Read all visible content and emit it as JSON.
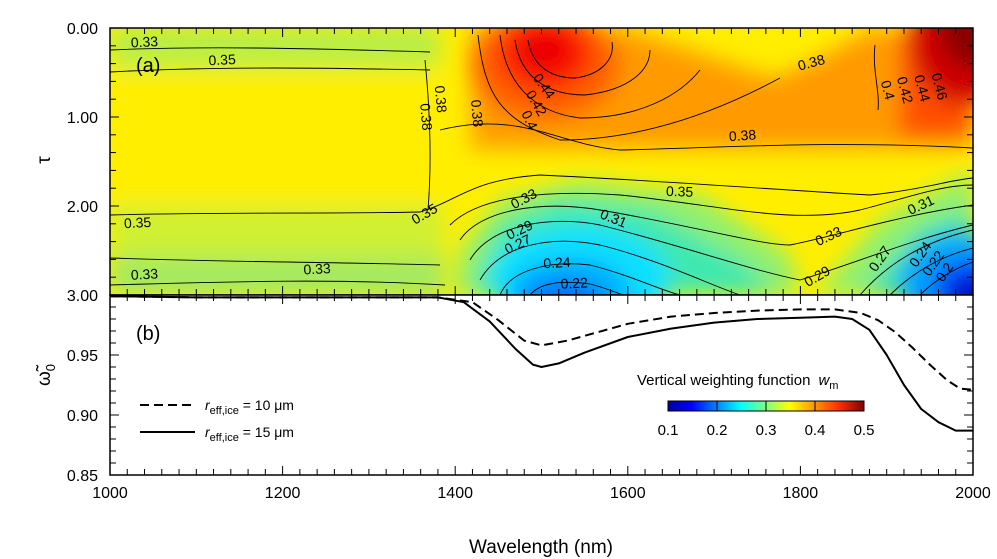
{
  "chart_data": [
    {
      "panel": "(a)",
      "type": "heatmap",
      "xlabel": "Wavelength (nm)",
      "ylabel": "τ",
      "xlim": [
        1000,
        2000
      ],
      "ylim": [
        3.0,
        0.0
      ],
      "x_ticks": [
        1000,
        1200,
        1400,
        1600,
        1800,
        2000
      ],
      "y_ticks": [
        "0.00",
        "1.00",
        "2.00",
        "3.00"
      ],
      "colormap": "jet",
      "color_range": [
        0.1,
        0.5
      ],
      "contour_levels": [
        "0.22",
        "0.24",
        "0.27",
        "0.29",
        "0.31",
        "0.33",
        "0.35",
        "0.38",
        "0.4",
        "0.42",
        "0.44",
        "0.46"
      ],
      "colorbar": {
        "title": "Vertical weighting function",
        "symbol": "w",
        "subscript": "m",
        "ticks": [
          "0.1",
          "0.2",
          "0.3",
          "0.4",
          "0.5"
        ]
      },
      "contour_labels": [
        {
          "text": "0.33",
          "x": 1040,
          "y": 0.17,
          "rot": -3
        },
        {
          "text": "0.35",
          "x": 1130,
          "y": 0.37,
          "rot": -3
        },
        {
          "text": "0.38",
          "x": 1382,
          "y": 0.8,
          "rot": 85
        },
        {
          "text": "0.38",
          "x": 1365,
          "y": 1.0,
          "rot": 85
        },
        {
          "text": "0.38",
          "x": 1424,
          "y": 0.96,
          "rot": 85
        },
        {
          "text": "0.44",
          "x": 1502,
          "y": 0.66,
          "rot": 55
        },
        {
          "text": "0.42",
          "x": 1493,
          "y": 0.85,
          "rot": 60
        },
        {
          "text": "0.4",
          "x": 1485,
          "y": 1.04,
          "rot": 65
        },
        {
          "text": "0.38",
          "x": 1813,
          "y": 0.4,
          "rot": -15
        },
        {
          "text": "0.4",
          "x": 1900,
          "y": 0.7,
          "rot": 75
        },
        {
          "text": "0.42",
          "x": 1920,
          "y": 0.7,
          "rot": 75
        },
        {
          "text": "0.44",
          "x": 1940,
          "y": 0.68,
          "rot": 75
        },
        {
          "text": "0.46",
          "x": 1960,
          "y": 0.66,
          "rot": 75
        },
        {
          "text": "0.38",
          "x": 1733,
          "y": 1.22,
          "rot": -4
        },
        {
          "text": "0.35",
          "x": 1660,
          "y": 1.85,
          "rot": 2
        },
        {
          "text": "0.35",
          "x": 1032,
          "y": 2.2,
          "rot": -3
        },
        {
          "text": "0.35",
          "x": 1365,
          "y": 2.1,
          "rot": -30
        },
        {
          "text": "0.33",
          "x": 1480,
          "y": 1.93,
          "rot": -28
        },
        {
          "text": "0.29",
          "x": 1475,
          "y": 2.28,
          "rot": -25
        },
        {
          "text": "0.27",
          "x": 1473,
          "y": 2.44,
          "rot": -25
        },
        {
          "text": "0.31",
          "x": 1583,
          "y": 2.15,
          "rot": 22
        },
        {
          "text": "0.24",
          "x": 1518,
          "y": 2.65,
          "rot": -3
        },
        {
          "text": "0.22",
          "x": 1538,
          "y": 2.88,
          "rot": -3
        },
        {
          "text": "0.33",
          "x": 1833,
          "y": 2.35,
          "rot": -25
        },
        {
          "text": "0.31",
          "x": 1940,
          "y": 2.0,
          "rot": -25
        },
        {
          "text": "0.29",
          "x": 1820,
          "y": 2.8,
          "rot": -30
        },
        {
          "text": "0.27",
          "x": 1893,
          "y": 2.6,
          "rot": -55
        },
        {
          "text": "0.24",
          "x": 1940,
          "y": 2.55,
          "rot": -55
        },
        {
          "text": "0.22",
          "x": 1955,
          "y": 2.65,
          "rot": -55
        },
        {
          "text": "0.2",
          "x": 1968,
          "y": 2.75,
          "rot": -55
        },
        {
          "text": "0.33",
          "x": 1040,
          "y": 2.78,
          "rot": -3
        },
        {
          "text": "0.33",
          "x": 1240,
          "y": 2.72,
          "rot": -3
        }
      ]
    },
    {
      "panel": "(b)",
      "type": "line",
      "xlabel": "Wavelength (nm)",
      "ylabel": "ω̃",
      "ylabel_subscript": "0",
      "xlim": [
        1000,
        2000
      ],
      "ylim": [
        0.85,
        1.0
      ],
      "x_ticks": [
        "1000",
        "1200",
        "1400",
        "1600",
        "1800",
        "2000"
      ],
      "y_ticks": [
        "0.85",
        "0.90",
        "0.95"
      ],
      "series": [
        {
          "name": "r",
          "name_subscript": "eff,ice",
          "name_value": " = 10 μm",
          "style": "dashed",
          "x": [
            1000,
            1100,
            1200,
            1300,
            1380,
            1420,
            1450,
            1480,
            1500,
            1530,
            1560,
            1600,
            1650,
            1700,
            1750,
            1800,
            1840,
            1870,
            1890,
            1910,
            1930,
            1950,
            1970,
            1985,
            2000
          ],
          "y": [
            0.999,
            0.998,
            0.998,
            0.998,
            0.998,
            0.994,
            0.979,
            0.962,
            0.958,
            0.962,
            0.968,
            0.976,
            0.982,
            0.985,
            0.987,
            0.988,
            0.988,
            0.985,
            0.979,
            0.969,
            0.956,
            0.942,
            0.929,
            0.922,
            0.921
          ]
        },
        {
          "name": "r",
          "name_subscript": "eff,ice",
          "name_value": " = 15 μm",
          "style": "solid",
          "x": [
            1000,
            1100,
            1200,
            1300,
            1380,
            1410,
            1440,
            1470,
            1490,
            1500,
            1520,
            1550,
            1600,
            1650,
            1700,
            1750,
            1800,
            1840,
            1860,
            1880,
            1900,
            1920,
            1940,
            1960,
            1980,
            2000
          ],
          "y": [
            0.999,
            0.998,
            0.998,
            0.998,
            0.998,
            0.994,
            0.978,
            0.955,
            0.942,
            0.94,
            0.943,
            0.952,
            0.965,
            0.972,
            0.977,
            0.98,
            0.981,
            0.982,
            0.98,
            0.971,
            0.95,
            0.925,
            0.905,
            0.894,
            0.887,
            0.887
          ]
        }
      ]
    }
  ]
}
